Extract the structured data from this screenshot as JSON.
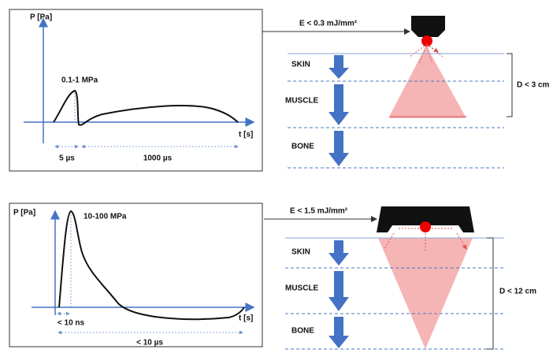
{
  "panels": [
    {
      "graph": {
        "y_label": "P [Pa]",
        "peak_label": "0.1-1 MPa",
        "x_label": "t [s]",
        "time_labels": [
          "5 µs",
          "1000 µs"
        ]
      },
      "energy_label": "E < 0.3 mJ/mm²",
      "layers": [
        "SKIN",
        "MUSCLE",
        "BONE"
      ],
      "depth_label": "D < 3 cm"
    },
    {
      "graph": {
        "y_label": "P [Pa]",
        "peak_label": "10-100 MPa",
        "x_label": "t [s]",
        "time_labels": [
          "< 10 ns",
          "< 10 µs"
        ]
      },
      "energy_label": "E < 1.5 mJ/mm²",
      "layers": [
        "SKIN",
        "MUSCLE",
        "BONE"
      ],
      "depth_label": "D < 12 cm"
    }
  ]
}
